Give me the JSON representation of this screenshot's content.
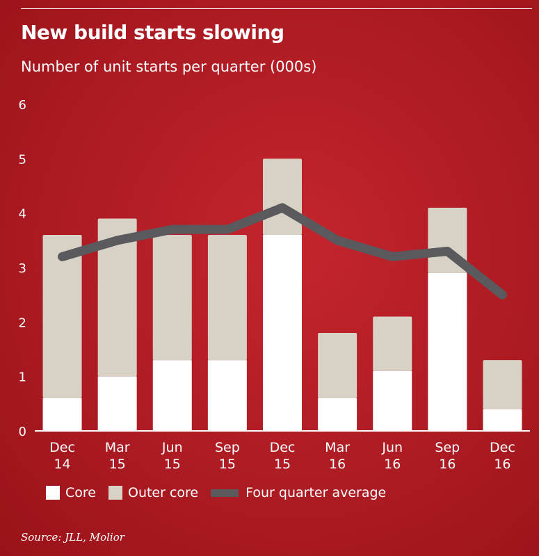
{
  "header": {
    "title": "New build starts slowing",
    "subtitle": "Number of unit starts per quarter (000s)"
  },
  "source": "Source: JLL, Molior",
  "colors": {
    "background": "#b11f27",
    "core": "#ffffff",
    "outer_core": "#d8d2c6",
    "average": "#5a5a5e"
  },
  "chart_data": {
    "type": "bar",
    "stacked": true,
    "categories": [
      "Dec 14",
      "Mar 15",
      "Jun 15",
      "Sep 15",
      "Dec 15",
      "Mar 16",
      "Jun 16",
      "Sep 16",
      "Dec 16"
    ],
    "category_labels": [
      [
        "Dec",
        "14"
      ],
      [
        "Mar",
        "15"
      ],
      [
        "Jun",
        "15"
      ],
      [
        "Sep",
        "15"
      ],
      [
        "Dec",
        "15"
      ],
      [
        "Mar",
        "16"
      ],
      [
        "Jun",
        "16"
      ],
      [
        "Sep",
        "16"
      ],
      [
        "Dec",
        "16"
      ]
    ],
    "series": [
      {
        "name": "Core",
        "type": "bar",
        "color": "#ffffff",
        "values": [
          0.6,
          1.0,
          1.3,
          1.3,
          3.6,
          0.6,
          1.1,
          2.9,
          0.4
        ]
      },
      {
        "name": "Outer core",
        "type": "bar",
        "color": "#d8d2c6",
        "values": [
          3.0,
          2.9,
          2.3,
          2.3,
          1.4,
          1.2,
          1.0,
          1.2,
          0.9
        ]
      },
      {
        "name": "Four quarter average",
        "type": "line",
        "color": "#5a5a5e",
        "values": [
          3.2,
          3.5,
          3.7,
          3.7,
          4.1,
          3.5,
          3.2,
          3.3,
          2.5
        ]
      }
    ],
    "yticks": [
      0,
      1,
      2,
      3,
      4,
      5,
      6
    ],
    "ylim": [
      0,
      6
    ],
    "grid": false,
    "legend_position": "bottom"
  }
}
